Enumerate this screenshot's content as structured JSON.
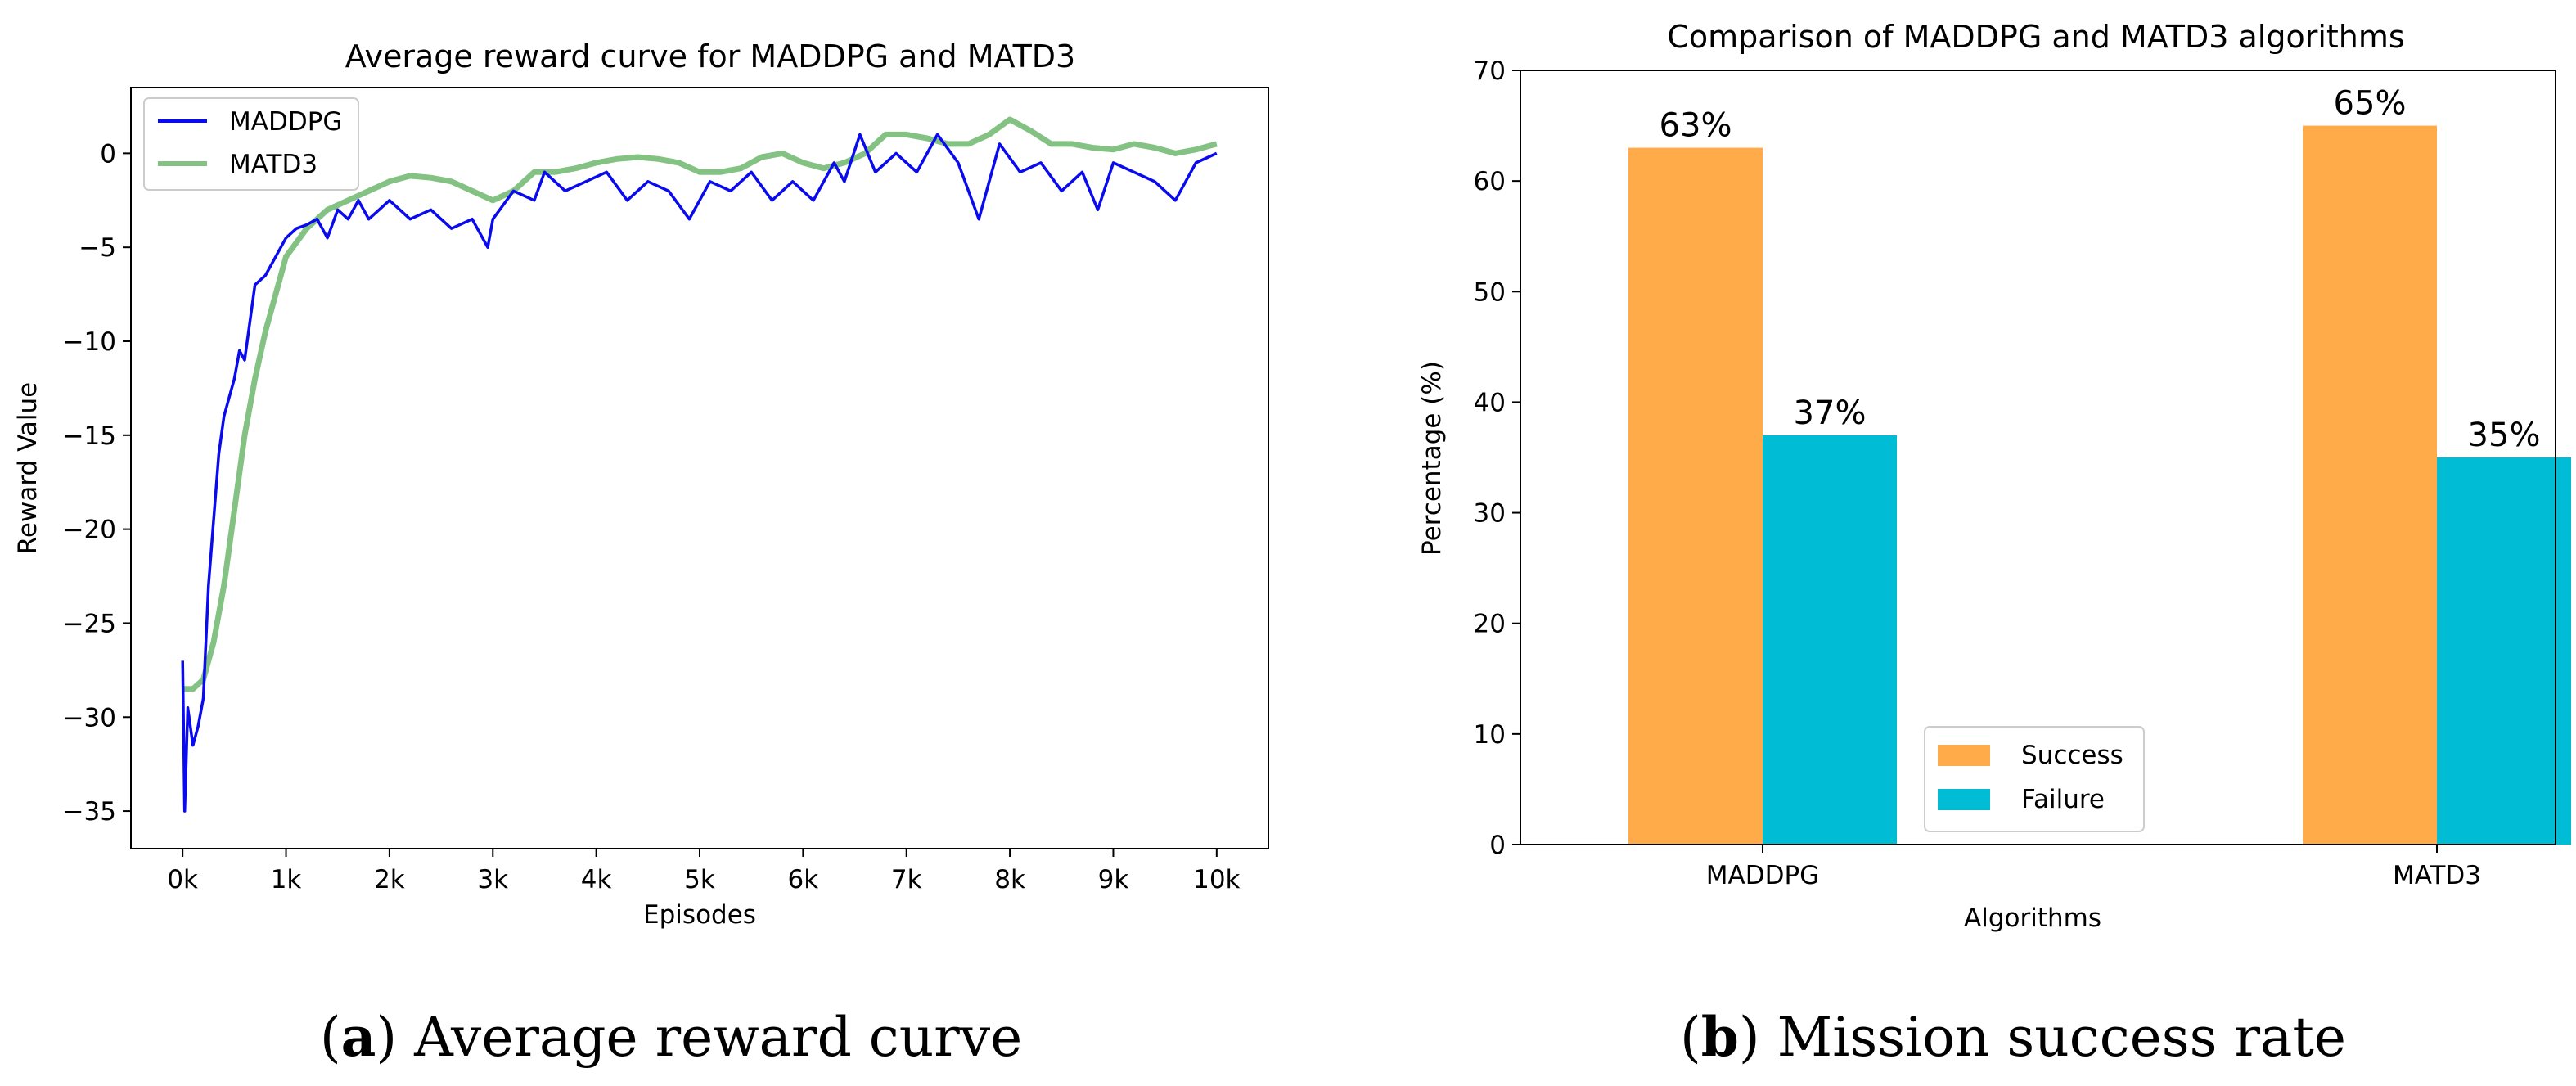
{
  "chart_data": [
    {
      "type": "line",
      "title": "Average reward curve for MADDPG and MATD3",
      "xlabel": "Episodes",
      "ylabel": "Reward Value",
      "xlim": [
        -0.5,
        10.5
      ],
      "ylim": [
        -37,
        3.5
      ],
      "xticks": [
        0,
        1,
        2,
        3,
        4,
        5,
        6,
        7,
        8,
        9,
        10
      ],
      "xtick_labels": [
        "0k",
        "1k",
        "2k",
        "3k",
        "4k",
        "5k",
        "6k",
        "7k",
        "8k",
        "9k",
        "10k"
      ],
      "yticks": [
        -35,
        -30,
        -25,
        -20,
        -15,
        -10,
        -5,
        0
      ],
      "ytick_labels": [
        "−35",
        "−30",
        "−25",
        "−20",
        "−15",
        "−10",
        "−5",
        "0"
      ],
      "legend_position": "upper-left",
      "series": [
        {
          "name": "MADDPG",
          "color": "#0a0aee",
          "x": [
            0,
            0.02,
            0.05,
            0.1,
            0.15,
            0.2,
            0.25,
            0.3,
            0.35,
            0.4,
            0.45,
            0.5,
            0.55,
            0.6,
            0.65,
            0.7,
            0.8,
            0.9,
            1.0,
            1.1,
            1.2,
            1.3,
            1.4,
            1.5,
            1.6,
            1.7,
            1.8,
            1.9,
            2.0,
            2.2,
            2.4,
            2.6,
            2.8,
            2.95,
            3.0,
            3.2,
            3.4,
            3.5,
            3.7,
            3.9,
            4.1,
            4.3,
            4.5,
            4.7,
            4.9,
            5.1,
            5.3,
            5.5,
            5.7,
            5.9,
            6.1,
            6.3,
            6.4,
            6.55,
            6.7,
            6.9,
            7.1,
            7.3,
            7.5,
            7.7,
            7.9,
            8.1,
            8.3,
            8.5,
            8.7,
            8.85,
            9.0,
            9.2,
            9.4,
            9.6,
            9.8,
            10.0
          ],
          "y": [
            -27,
            -35,
            -29.5,
            -31.5,
            -30.5,
            -29,
            -23,
            -19.5,
            -16,
            -14,
            -13,
            -12,
            -10.5,
            -11,
            -9,
            -7,
            -6.5,
            -5.5,
            -4.5,
            -4,
            -3.8,
            -3.5,
            -4.5,
            -3,
            -3.5,
            -2.5,
            -3.5,
            -3,
            -2.5,
            -3.5,
            -3,
            -4,
            -3.5,
            -5,
            -3.5,
            -2,
            -2.5,
            -1,
            -2,
            -1.5,
            -1,
            -2.5,
            -1.5,
            -2,
            -3.5,
            -1.5,
            -2,
            -1,
            -2.5,
            -1.5,
            -2.5,
            -0.5,
            -1.5,
            1,
            -1,
            0,
            -1,
            1,
            -0.5,
            -3.5,
            0.5,
            -1,
            -0.5,
            -2,
            -1,
            -3,
            -0.5,
            -1,
            -1.5,
            -2.5,
            -0.5,
            0
          ]
        },
        {
          "name": "MATD3",
          "color": "#84c284",
          "x": [
            0,
            0.1,
            0.2,
            0.3,
            0.4,
            0.5,
            0.6,
            0.7,
            0.8,
            0.9,
            1.0,
            1.2,
            1.4,
            1.6,
            1.8,
            2.0,
            2.2,
            2.4,
            2.6,
            2.8,
            3.0,
            3.2,
            3.4,
            3.6,
            3.8,
            4.0,
            4.2,
            4.4,
            4.6,
            4.8,
            5.0,
            5.2,
            5.4,
            5.6,
            5.8,
            6.0,
            6.2,
            6.4,
            6.6,
            6.8,
            7.0,
            7.2,
            7.4,
            7.6,
            7.8,
            8.0,
            8.2,
            8.4,
            8.6,
            8.8,
            9.0,
            9.2,
            9.4,
            9.6,
            9.8,
            10.0
          ],
          "y": [
            -28.5,
            -28.5,
            -28,
            -26,
            -23,
            -19,
            -15,
            -12,
            -9.5,
            -7.5,
            -5.5,
            -4,
            -3,
            -2.5,
            -2,
            -1.5,
            -1.2,
            -1.3,
            -1.5,
            -2,
            -2.5,
            -2,
            -1,
            -1,
            -0.8,
            -0.5,
            -0.3,
            -0.2,
            -0.3,
            -0.5,
            -1,
            -1,
            -0.8,
            -0.2,
            0,
            -0.5,
            -0.8,
            -0.5,
            0,
            1,
            1,
            0.8,
            0.5,
            0.5,
            1,
            1.8,
            1.2,
            0.5,
            0.5,
            0.3,
            0.2,
            0.5,
            0.3,
            0,
            0.2,
            0.5
          ]
        }
      ]
    },
    {
      "type": "bar",
      "title": "Comparison of MADDPG and MATD3 algorithms",
      "xlabel": "Algorithms",
      "ylabel": "Percentage (%)",
      "categories": [
        "MADDPG",
        "MATD3"
      ],
      "ylim": [
        0,
        70
      ],
      "yticks": [
        0,
        10,
        20,
        30,
        40,
        50,
        60,
        70
      ],
      "legend_position": "lower-center",
      "series": [
        {
          "name": "Success",
          "color": "#ffab4a",
          "values": [
            63,
            65
          ],
          "labels": [
            "63%",
            "65%"
          ]
        },
        {
          "name": "Failure",
          "color": "#00bcd4",
          "values": [
            37,
            35
          ],
          "labels": [
            "37%",
            "35%"
          ]
        }
      ]
    }
  ],
  "captions": [
    {
      "letter": "a",
      "text": "Average reward curve"
    },
    {
      "letter": "b",
      "text": "Mission success rate"
    }
  ]
}
